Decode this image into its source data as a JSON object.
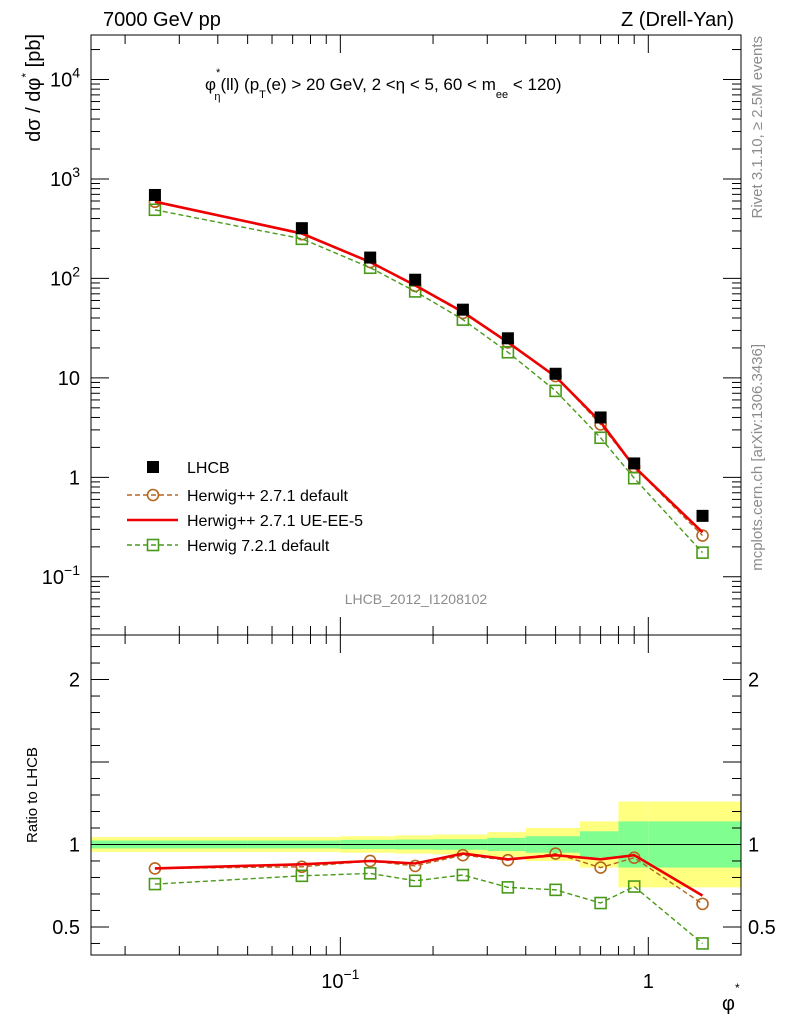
{
  "header": {
    "energy_label": "7000 GeV pp",
    "process_label": "Z (Drell-Yan)",
    "side_label_top": "Rivet 3.1.10, ≥ 2.5M events",
    "side_label_bottom": "mcplots.cern.ch [arXiv:1306.3436]",
    "analysis_id": "LHCB_2012_I1208102"
  },
  "chart_data": [
    {
      "type": "scatter",
      "title_main": "φ",
      "title_sup": "*",
      "title_sub": "η",
      "title_rest_1": "(ll) (p",
      "title_sub2": "T",
      "title_rest_2": "(e) > 20 GeV, 2 <η < 5, 60 < m",
      "title_sub3": "ee",
      "title_rest_3": " < 120)",
      "ylabel": "dσ / dφ* [pb]",
      "ylabel_base": "dσ / dφ",
      "ylabel_sup": "*",
      "ylabel_unit": "[pb]",
      "xscale": "log",
      "yscale": "log",
      "xlim": [
        0.0155,
        2.0
      ],
      "ylim": [
        0.026,
        28000
      ],
      "y_ticks": [
        {
          "v": 0.1,
          "base": "10",
          "exp": "−1"
        },
        {
          "v": 1,
          "base": "1",
          "exp": ""
        },
        {
          "v": 10,
          "base": "10",
          "exp": ""
        },
        {
          "v": 100,
          "base": "10",
          "exp": "2"
        },
        {
          "v": 1000,
          "base": "10",
          "exp": "3"
        },
        {
          "v": 10000,
          "base": "10",
          "exp": "4"
        }
      ],
      "legend_position": "lower-left",
      "x": [
        0.025,
        0.075,
        0.125,
        0.175,
        0.25,
        0.35,
        0.5,
        0.7,
        0.9,
        1.5
      ],
      "series": [
        {
          "name": "LHCB",
          "style": "data",
          "color": "#000000",
          "y": [
            690,
            320,
            162,
            97,
            48.5,
            25,
            11,
            4.0,
            1.38,
            0.41
          ]
        },
        {
          "name": "Herwig++ 2.7.1 default",
          "style": "dashed-circle",
          "color": "#b5651d",
          "y": [
            590,
            278,
            146,
            84,
            45,
            22.7,
            10.4,
            3.4,
            1.27,
            0.26
          ]
        },
        {
          "name": "Herwig++ 2.7.1 UE-EE-5",
          "style": "solid-line",
          "color": "#ee0000",
          "y": [
            590,
            283,
            146,
            85,
            46,
            22.8,
            10.3,
            3.6,
            1.28,
            0.28
          ]
        },
        {
          "name": "Herwig 7.2.1 default",
          "style": "dashed-square",
          "color": "#4a9a1a",
          "y": [
            490,
            250,
            128,
            74,
            38.5,
            18.1,
            7.4,
            2.5,
            0.98,
            0.175
          ]
        }
      ]
    },
    {
      "type": "scatter",
      "ylabel": "Ratio to LHCB",
      "xlabel": "φ",
      "xlabel_sup": "*",
      "xscale": "log",
      "xlim": [
        0.0155,
        2.0
      ],
      "ylim": [
        0.33,
        2.27
      ],
      "y_ticks": [
        {
          "v": 0.5,
          "label": "0.5"
        },
        {
          "v": 1,
          "label": "1"
        },
        {
          "v": 2,
          "label": "2"
        }
      ],
      "x_ticks": [
        {
          "v": 0.1,
          "base": "10",
          "exp": "−1"
        },
        {
          "v": 1,
          "base": "1",
          "exp": ""
        }
      ],
      "bins": [
        0.0155,
        0.05,
        0.1,
        0.15,
        0.2,
        0.3,
        0.4,
        0.6,
        0.8,
        1.0,
        2.0
      ],
      "band_green_halfwidth": [
        0.024,
        0.024,
        0.028,
        0.03,
        0.032,
        0.04,
        0.05,
        0.08,
        0.14,
        0.14
      ],
      "band_yellow_halfwidth": [
        0.045,
        0.045,
        0.05,
        0.055,
        0.06,
        0.075,
        0.1,
        0.14,
        0.26,
        0.26
      ],
      "x": [
        0.025,
        0.075,
        0.125,
        0.175,
        0.25,
        0.35,
        0.5,
        0.7,
        0.9,
        1.5
      ],
      "series": [
        {
          "name": "Herwig++ 2.7.1 default",
          "style": "dashed-circle",
          "color": "#b5651d",
          "y": [
            0.855,
            0.865,
            0.9,
            0.87,
            0.935,
            0.905,
            0.945,
            0.86,
            0.92,
            0.64
          ]
        },
        {
          "name": "Herwig++ 2.7.1 UE-EE-5",
          "style": "solid-line",
          "color": "#ee0000",
          "y": [
            0.855,
            0.88,
            0.9,
            0.885,
            0.945,
            0.91,
            0.935,
            0.91,
            0.935,
            0.69
          ]
        },
        {
          "name": "Herwig 7.2.1 default",
          "style": "dashed-square",
          "color": "#4a9a1a",
          "y": [
            0.76,
            0.81,
            0.825,
            0.78,
            0.815,
            0.74,
            0.725,
            0.645,
            0.745,
            0.4
          ]
        }
      ]
    }
  ]
}
